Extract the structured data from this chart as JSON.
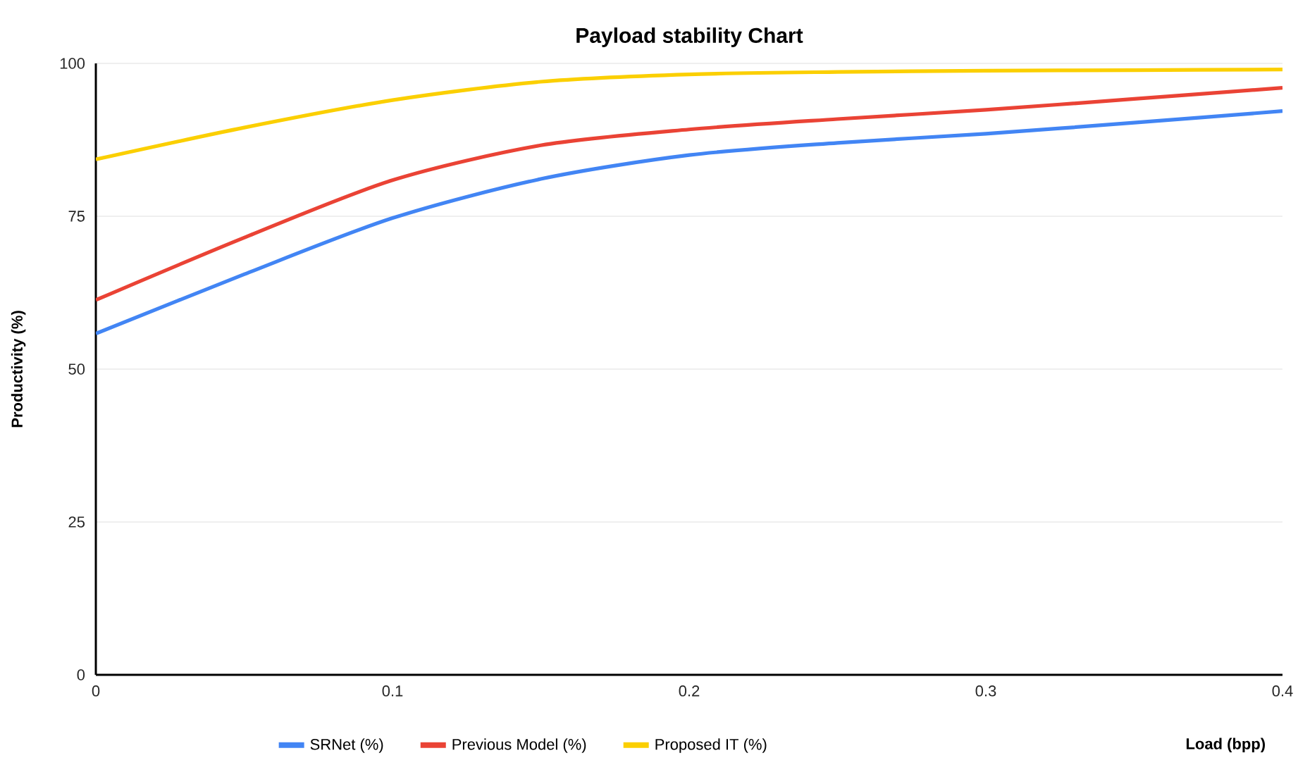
{
  "chart_data": {
    "type": "line",
    "title": "Payload stability Chart",
    "xlabel": "Load (bpp)",
    "ylabel": "Productivity (%)",
    "x": [
      0,
      0.05,
      0.1,
      0.15,
      0.2,
      0.25,
      0.3,
      0.35,
      0.4
    ],
    "series": [
      {
        "name": "SRNet (%)",
        "color": "#4285f4",
        "values": [
          55.8,
          65.5,
          74.7,
          81.1,
          85,
          87,
          88.5,
          90.3,
          92.2
        ]
      },
      {
        "name": "Previous Model (%)",
        "color": "#ea4335",
        "values": [
          61.3,
          71.5,
          80.9,
          86.6,
          89.2,
          90.9,
          92.4,
          94.2,
          96
        ]
      },
      {
        "name": "Proposed IT (%)",
        "color": "#fbcf00",
        "values": [
          84.3,
          89.5,
          94,
          97,
          98.2,
          98.6,
          98.8,
          98.9,
          99
        ]
      }
    ],
    "xlim": [
      0,
      0.4
    ],
    "ylim": [
      0,
      100
    ],
    "xticks": [
      0,
      0.1,
      0.2,
      0.3,
      0.4
    ],
    "yticks": [
      0,
      25,
      50,
      75,
      100
    ],
    "grid": "y",
    "legend": "bottom",
    "marker": "none",
    "line_style": "solid"
  }
}
